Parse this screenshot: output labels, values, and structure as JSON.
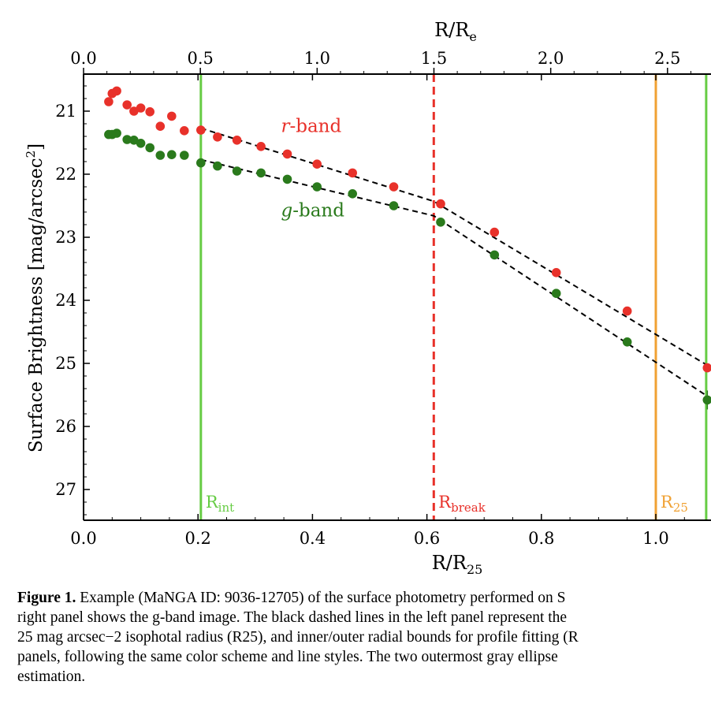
{
  "chart_data": {
    "type": "scatter",
    "xlabel": "R/R25",
    "x2label": "R/Re",
    "ylabel": "Surface Brightness [mag/arcsec^2]",
    "xlim": [
      0.0,
      1.09
    ],
    "ylim": [
      27.5,
      20.35
    ],
    "y_inverted": true,
    "x_ticks": [
      "0.0",
      "0.2",
      "0.4",
      "0.6",
      "0.8",
      "1.0"
    ],
    "x2_ticks": [
      "0.0",
      "0.5",
      "1.0",
      "1.5",
      "2.0",
      "2.5"
    ],
    "y_ticks": [
      "21",
      "22",
      "23",
      "24",
      "25",
      "26",
      "27"
    ],
    "x2_per_x": 2.45,
    "grid": false,
    "series": [
      {
        "name": "r-band",
        "color": "#e8312a",
        "points": [
          [
            0.044,
            20.85
          ],
          [
            0.05,
            20.72
          ],
          [
            0.058,
            20.68
          ],
          [
            0.076,
            20.9
          ],
          [
            0.088,
            21.0
          ],
          [
            0.1,
            20.95
          ],
          [
            0.116,
            21.01
          ],
          [
            0.134,
            21.24
          ],
          [
            0.154,
            21.08
          ],
          [
            0.176,
            21.31
          ],
          [
            0.205,
            21.3
          ],
          [
            0.234,
            21.41
          ],
          [
            0.268,
            21.46
          ],
          [
            0.31,
            21.56
          ],
          [
            0.356,
            21.68
          ],
          [
            0.408,
            21.84
          ],
          [
            0.47,
            21.98
          ],
          [
            0.542,
            22.2
          ],
          [
            0.624,
            22.47
          ],
          [
            0.718,
            22.92
          ],
          [
            0.826,
            23.56
          ],
          [
            0.95,
            24.17
          ],
          [
            1.09,
            25.07
          ]
        ]
      },
      {
        "name": "g-band",
        "color": "#2a7a1c",
        "points": [
          [
            0.044,
            21.37
          ],
          [
            0.05,
            21.37
          ],
          [
            0.058,
            21.35
          ],
          [
            0.076,
            21.45
          ],
          [
            0.088,
            21.46
          ],
          [
            0.1,
            21.51
          ],
          [
            0.116,
            21.58
          ],
          [
            0.134,
            21.7
          ],
          [
            0.154,
            21.69
          ],
          [
            0.176,
            21.7
          ],
          [
            0.205,
            21.82
          ],
          [
            0.234,
            21.87
          ],
          [
            0.268,
            21.95
          ],
          [
            0.31,
            21.98
          ],
          [
            0.356,
            22.08
          ],
          [
            0.408,
            22.2
          ],
          [
            0.47,
            22.31
          ],
          [
            0.542,
            22.5
          ],
          [
            0.624,
            22.76
          ],
          [
            0.718,
            23.28
          ],
          [
            0.826,
            23.89
          ],
          [
            0.95,
            24.66
          ],
          [
            1.09,
            25.58
          ]
        ]
      }
    ],
    "fit_lines": [
      {
        "name": "r-band fit",
        "points": [
          [
            0.205,
            21.27
          ],
          [
            0.612,
            22.43
          ],
          [
            1.09,
            25.03
          ]
        ]
      },
      {
        "name": "g-band fit",
        "points": [
          [
            0.205,
            21.77
          ],
          [
            0.612,
            22.66
          ],
          [
            1.09,
            25.52
          ]
        ]
      }
    ],
    "vlines": [
      {
        "x": 0.205,
        "label_main": "R",
        "label_sub": "int",
        "color": "#66cc44",
        "style": "solid"
      },
      {
        "x": 0.612,
        "label_main": "R",
        "label_sub": "break",
        "color": "#e8312a",
        "style": "dashed"
      },
      {
        "x": 1.0,
        "label_main": "R",
        "label_sub": "25",
        "color": "#f0a133",
        "style": "solid"
      },
      {
        "x": 1.088,
        "label_main": "",
        "label_sub": "",
        "color": "#66cc44",
        "style": "solid"
      }
    ],
    "annotations": [
      {
        "italic": "r",
        "text": "-band",
        "x": 0.345,
        "y": 21.33,
        "color": "#e8312a"
      },
      {
        "italic": "g",
        "text": "-band",
        "x": 0.345,
        "y": 22.67,
        "color": "#2a7a1c"
      }
    ]
  },
  "caption": {
    "bold": "Figure 1.",
    "lines": [
      " Example (MaNGA ID: 9036-12705) of the surface photometry performed on S",
      "right panel shows the g-band image. The black dashed lines in the left panel represent the",
      "25 mag arcsec−2 isophotal radius (R25), and inner/outer radial bounds for profile fitting (R",
      "panels, following the same color scheme and line styles. The two outermost gray ellipse",
      "estimation."
    ]
  }
}
